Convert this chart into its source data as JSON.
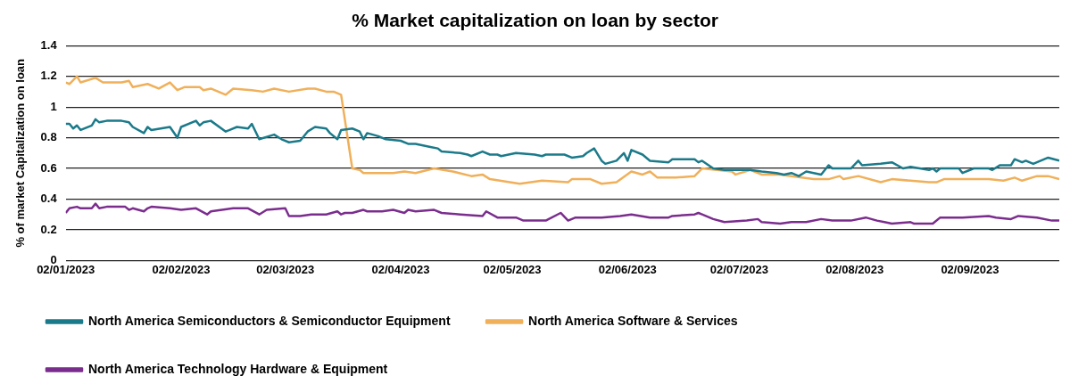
{
  "chart_data": {
    "type": "line",
    "title": "% Market capitalization on loan by sector",
    "ylabel": "% of market Capitalization on loan",
    "xlim": [
      "2023-01-02",
      "2023-09-26"
    ],
    "xticks": [
      {
        "value": "2023-01-02",
        "label": "02/01/2023"
      },
      {
        "value": "2023-02-02",
        "label": "02/02/2023"
      },
      {
        "value": "2023-03-02",
        "label": "02/03/2023"
      },
      {
        "value": "2023-04-02",
        "label": "02/04/2023"
      },
      {
        "value": "2023-05-02",
        "label": "02/05/2023"
      },
      {
        "value": "2023-06-02",
        "label": "02/06/2023"
      },
      {
        "value": "2023-07-02",
        "label": "02/07/2023"
      },
      {
        "value": "2023-08-02",
        "label": "02/08/2023"
      },
      {
        "value": "2023-09-02",
        "label": "02/09/2023"
      }
    ],
    "ylim": [
      0,
      1.4
    ],
    "yticks": [
      0,
      0.2,
      0.4,
      0.6,
      0.8,
      1,
      1.2,
      1.4
    ],
    "grid": "y",
    "legend": "bottom",
    "marker": "none",
    "line_style": "solid",
    "series": [
      {
        "name": "North America Semiconductors & Semiconductor Equipment",
        "color": "#1b7a8a",
        "x": [
          "2023-01-02",
          "2023-01-03",
          "2023-01-04",
          "2023-01-05",
          "2023-01-06",
          "2023-01-09",
          "2023-01-10",
          "2023-01-11",
          "2023-01-13",
          "2023-01-17",
          "2023-01-19",
          "2023-01-20",
          "2023-01-23",
          "2023-01-24",
          "2023-01-25",
          "2023-01-30",
          "2023-02-01",
          "2023-02-02",
          "2023-02-06",
          "2023-02-07",
          "2023-02-08",
          "2023-02-10",
          "2023-02-14",
          "2023-02-17",
          "2023-02-20",
          "2023-02-21",
          "2023-02-23",
          "2023-02-27",
          "2023-03-01",
          "2023-03-03",
          "2023-03-06",
          "2023-03-08",
          "2023-03-10",
          "2023-03-13",
          "2023-03-14",
          "2023-03-16",
          "2023-03-17",
          "2023-03-20",
          "2023-03-22",
          "2023-03-23",
          "2023-03-24",
          "2023-03-27",
          "2023-03-29",
          "2023-04-02",
          "2023-04-04",
          "2023-04-06",
          "2023-04-10",
          "2023-04-12",
          "2023-04-13",
          "2023-04-18",
          "2023-04-20",
          "2023-04-21",
          "2023-04-24",
          "2023-04-26",
          "2023-04-28",
          "2023-04-29",
          "2023-05-03",
          "2023-05-08",
          "2023-05-10",
          "2023-05-11",
          "2023-05-16",
          "2023-05-18",
          "2023-05-21",
          "2023-05-22",
          "2023-05-24",
          "2023-05-26",
          "2023-05-27",
          "2023-05-30",
          "2023-06-01",
          "2023-06-02",
          "2023-06-03",
          "2023-06-06",
          "2023-06-08",
          "2023-06-13",
          "2023-06-14",
          "2023-06-16",
          "2023-06-20",
          "2023-06-21",
          "2023-06-22",
          "2023-06-25",
          "2023-06-28",
          "2023-06-30",
          "2023-07-05",
          "2023-07-08",
          "2023-07-12",
          "2023-07-14",
          "2023-07-16",
          "2023-07-18",
          "2023-07-20",
          "2023-07-22",
          "2023-07-24",
          "2023-07-26",
          "2023-07-27",
          "2023-08-01",
          "2023-08-03",
          "2023-08-04",
          "2023-08-09",
          "2023-08-12",
          "2023-08-15",
          "2023-08-17",
          "2023-08-22",
          "2023-08-23",
          "2023-08-24",
          "2023-08-25",
          "2023-08-30",
          "2023-08-31",
          "2023-09-02",
          "2023-09-03",
          "2023-09-07",
          "2023-09-08",
          "2023-09-10",
          "2023-09-13",
          "2023-09-14",
          "2023-09-16",
          "2023-09-17",
          "2023-09-19",
          "2023-09-21",
          "2023-09-23",
          "2023-09-26"
        ],
        "values": [
          0.89,
          0.89,
          0.86,
          0.88,
          0.85,
          0.88,
          0.92,
          0.9,
          0.91,
          0.91,
          0.9,
          0.87,
          0.83,
          0.87,
          0.85,
          0.87,
          0.8,
          0.87,
          0.91,
          0.88,
          0.9,
          0.91,
          0.84,
          0.87,
          0.86,
          0.89,
          0.79,
          0.82,
          0.79,
          0.77,
          0.78,
          0.84,
          0.87,
          0.86,
          0.83,
          0.79,
          0.85,
          0.86,
          0.84,
          0.79,
          0.83,
          0.81,
          0.79,
          0.78,
          0.76,
          0.76,
          0.74,
          0.73,
          0.71,
          0.7,
          0.69,
          0.68,
          0.71,
          0.69,
          0.69,
          0.68,
          0.7,
          0.69,
          0.68,
          0.69,
          0.69,
          0.67,
          0.68,
          0.7,
          0.73,
          0.65,
          0.63,
          0.65,
          0.7,
          0.65,
          0.72,
          0.69,
          0.65,
          0.64,
          0.66,
          0.66,
          0.66,
          0.64,
          0.65,
          0.6,
          0.59,
          0.59,
          0.59,
          0.58,
          0.57,
          0.56,
          0.57,
          0.55,
          0.58,
          0.57,
          0.56,
          0.62,
          0.6,
          0.6,
          0.65,
          0.62,
          0.63,
          0.64,
          0.6,
          0.61,
          0.59,
          0.6,
          0.58,
          0.6,
          0.6,
          0.57,
          0.59,
          0.6,
          0.6,
          0.59,
          0.62,
          0.62,
          0.66,
          0.64,
          0.65,
          0.63,
          0.65,
          0.67,
          0.65
        ]
      },
      {
        "name": "North America Software & Services",
        "color": "#f0b05a",
        "x": [
          "2023-01-02",
          "2023-01-03",
          "2023-01-05",
          "2023-01-06",
          "2023-01-10",
          "2023-01-12",
          "2023-01-17",
          "2023-01-19",
          "2023-01-20",
          "2023-01-24",
          "2023-01-27",
          "2023-01-30",
          "2023-02-01",
          "2023-02-03",
          "2023-02-07",
          "2023-02-08",
          "2023-02-10",
          "2023-02-14",
          "2023-02-16",
          "2023-02-21",
          "2023-02-24",
          "2023-02-27",
          "2023-03-03",
          "2023-03-08",
          "2023-03-10",
          "2023-03-13",
          "2023-03-15",
          "2023-03-17",
          "2023-03-20",
          "2023-03-22",
          "2023-03-23",
          "2023-03-31",
          "2023-04-03",
          "2023-04-06",
          "2023-04-11",
          "2023-04-16",
          "2023-04-21",
          "2023-04-24",
          "2023-04-26",
          "2023-05-04",
          "2023-05-10",
          "2023-05-17",
          "2023-05-18",
          "2023-05-23",
          "2023-05-26",
          "2023-05-30",
          "2023-06-03",
          "2023-06-06",
          "2023-06-08",
          "2023-06-10",
          "2023-06-15",
          "2023-06-20",
          "2023-06-22",
          "2023-06-30",
          "2023-07-01",
          "2023-07-05",
          "2023-07-08",
          "2023-07-13",
          "2023-07-16",
          "2023-07-22",
          "2023-07-26",
          "2023-07-29",
          "2023-07-30",
          "2023-08-03",
          "2023-08-09",
          "2023-08-12",
          "2023-08-17",
          "2023-08-22",
          "2023-08-24",
          "2023-08-26",
          "2023-09-07",
          "2023-09-11",
          "2023-09-14",
          "2023-09-16",
          "2023-09-20",
          "2023-09-23",
          "2023-09-26"
        ],
        "values": [
          1.16,
          1.15,
          1.2,
          1.16,
          1.19,
          1.16,
          1.16,
          1.17,
          1.13,
          1.15,
          1.12,
          1.16,
          1.11,
          1.13,
          1.13,
          1.11,
          1.12,
          1.08,
          1.12,
          1.11,
          1.1,
          1.12,
          1.1,
          1.12,
          1.12,
          1.1,
          1.1,
          1.08,
          0.6,
          0.59,
          0.57,
          0.57,
          0.58,
          0.57,
          0.6,
          0.58,
          0.55,
          0.56,
          0.53,
          0.5,
          0.52,
          0.51,
          0.53,
          0.53,
          0.5,
          0.51,
          0.58,
          0.56,
          0.58,
          0.54,
          0.54,
          0.55,
          0.6,
          0.58,
          0.56,
          0.59,
          0.56,
          0.56,
          0.55,
          0.53,
          0.53,
          0.55,
          0.53,
          0.55,
          0.51,
          0.53,
          0.52,
          0.51,
          0.51,
          0.53,
          0.53,
          0.52,
          0.54,
          0.52,
          0.55,
          0.55,
          0.53
        ]
      },
      {
        "name": "North America Technology Hardware & Equipment",
        "color": "#7b2d8e",
        "x": [
          "2023-01-02",
          "2023-01-03",
          "2023-01-05",
          "2023-01-06",
          "2023-01-09",
          "2023-01-10",
          "2023-01-11",
          "2023-01-13",
          "2023-01-18",
          "2023-01-19",
          "2023-01-20",
          "2023-01-23",
          "2023-01-24",
          "2023-01-25",
          "2023-01-30",
          "2023-02-02",
          "2023-02-06",
          "2023-02-09",
          "2023-02-10",
          "2023-02-13",
          "2023-02-16",
          "2023-02-20",
          "2023-02-23",
          "2023-02-25",
          "2023-03-02",
          "2023-03-03",
          "2023-03-06",
          "2023-03-09",
          "2023-03-13",
          "2023-03-16",
          "2023-03-17",
          "2023-03-18",
          "2023-03-20",
          "2023-03-23",
          "2023-03-24",
          "2023-03-28",
          "2023-03-31",
          "2023-04-03",
          "2023-04-04",
          "2023-04-06",
          "2023-04-11",
          "2023-04-13",
          "2023-04-18",
          "2023-04-24",
          "2023-04-25",
          "2023-04-28",
          "2023-05-03",
          "2023-05-05",
          "2023-05-11",
          "2023-05-15",
          "2023-05-17",
          "2023-05-19",
          "2023-05-23",
          "2023-05-26",
          "2023-05-31",
          "2023-06-03",
          "2023-06-08",
          "2023-06-13",
          "2023-06-14",
          "2023-06-20",
          "2023-06-21",
          "2023-06-22",
          "2023-06-25",
          "2023-06-28",
          "2023-07-04",
          "2023-07-07",
          "2023-07-08",
          "2023-07-13",
          "2023-07-16",
          "2023-07-20",
          "2023-07-24",
          "2023-07-27",
          "2023-08-01",
          "2023-08-05",
          "2023-08-08",
          "2023-08-10",
          "2023-08-12",
          "2023-08-17",
          "2023-08-18",
          "2023-08-23",
          "2023-08-25",
          "2023-08-31",
          "2023-09-07",
          "2023-09-09",
          "2023-09-13",
          "2023-09-15",
          "2023-09-20",
          "2023-09-24",
          "2023-09-26"
        ],
        "values": [
          0.31,
          0.34,
          0.35,
          0.34,
          0.34,
          0.37,
          0.34,
          0.35,
          0.35,
          0.33,
          0.34,
          0.32,
          0.34,
          0.35,
          0.34,
          0.33,
          0.34,
          0.3,
          0.32,
          0.33,
          0.34,
          0.34,
          0.3,
          0.33,
          0.34,
          0.29,
          0.29,
          0.3,
          0.3,
          0.32,
          0.3,
          0.31,
          0.31,
          0.33,
          0.32,
          0.32,
          0.33,
          0.31,
          0.33,
          0.32,
          0.33,
          0.31,
          0.3,
          0.29,
          0.32,
          0.28,
          0.28,
          0.26,
          0.26,
          0.31,
          0.26,
          0.28,
          0.28,
          0.28,
          0.29,
          0.3,
          0.28,
          0.28,
          0.29,
          0.3,
          0.31,
          0.3,
          0.27,
          0.25,
          0.26,
          0.27,
          0.25,
          0.24,
          0.25,
          0.25,
          0.27,
          0.26,
          0.26,
          0.28,
          0.26,
          0.25,
          0.24,
          0.25,
          0.24,
          0.24,
          0.28,
          0.28,
          0.29,
          0.28,
          0.27,
          0.29,
          0.28,
          0.26,
          0.26
        ]
      }
    ]
  }
}
